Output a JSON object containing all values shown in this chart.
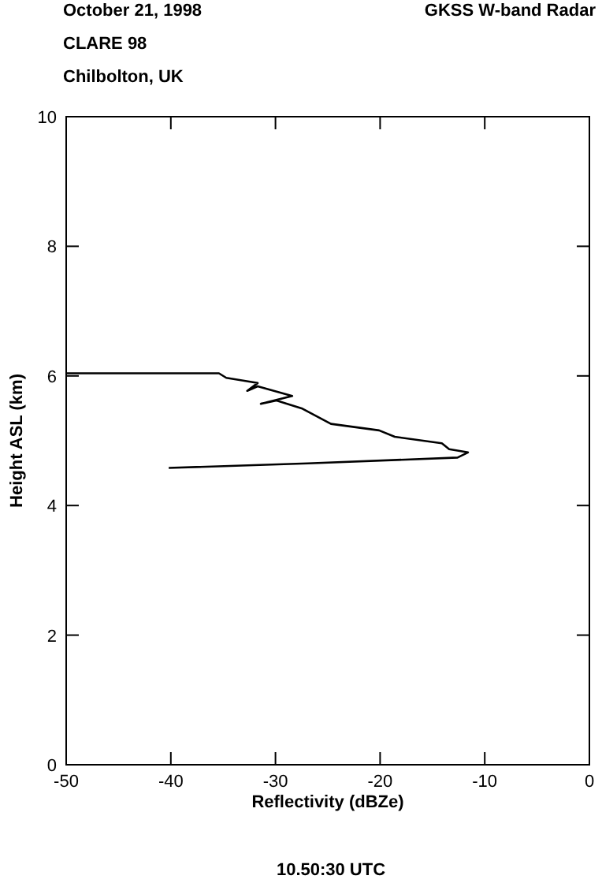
{
  "chart_data": {
    "type": "line",
    "xlabel": "Reflectivity (dBZe)",
    "ylabel": "Height ASL (km)",
    "annotations": [
      "October 21, 1998",
      "GKSS  W-band Radar",
      "CLARE 98",
      "Chilbolton, UK",
      "10.50:30 UTC"
    ],
    "xlim": [
      -50,
      0
    ],
    "xticks": [
      -50,
      -40,
      -30,
      -20,
      -10,
      0
    ],
    "ylim": [
      0,
      10
    ],
    "yticks": [
      0,
      2,
      4,
      6,
      8,
      10
    ],
    "grid": false,
    "line_style": "solid",
    "series": [
      {
        "color": "#000000",
        "x": [
          -50,
          -35.4,
          -34.7,
          -31.7,
          -32.7,
          -31.7,
          -28.4,
          -31.4,
          -29.9,
          -27.5,
          -24.7,
          -20.1,
          -18.6,
          -14.1,
          -13.4,
          -11.6,
          -12.6,
          -26.9,
          -40.2
        ],
        "values": [
          6.04,
          6.04,
          5.97,
          5.89,
          5.77,
          5.84,
          5.69,
          5.57,
          5.62,
          5.5,
          5.26,
          5.16,
          5.06,
          4.96,
          4.87,
          4.82,
          4.74,
          4.65,
          4.58
        ]
      }
    ]
  }
}
